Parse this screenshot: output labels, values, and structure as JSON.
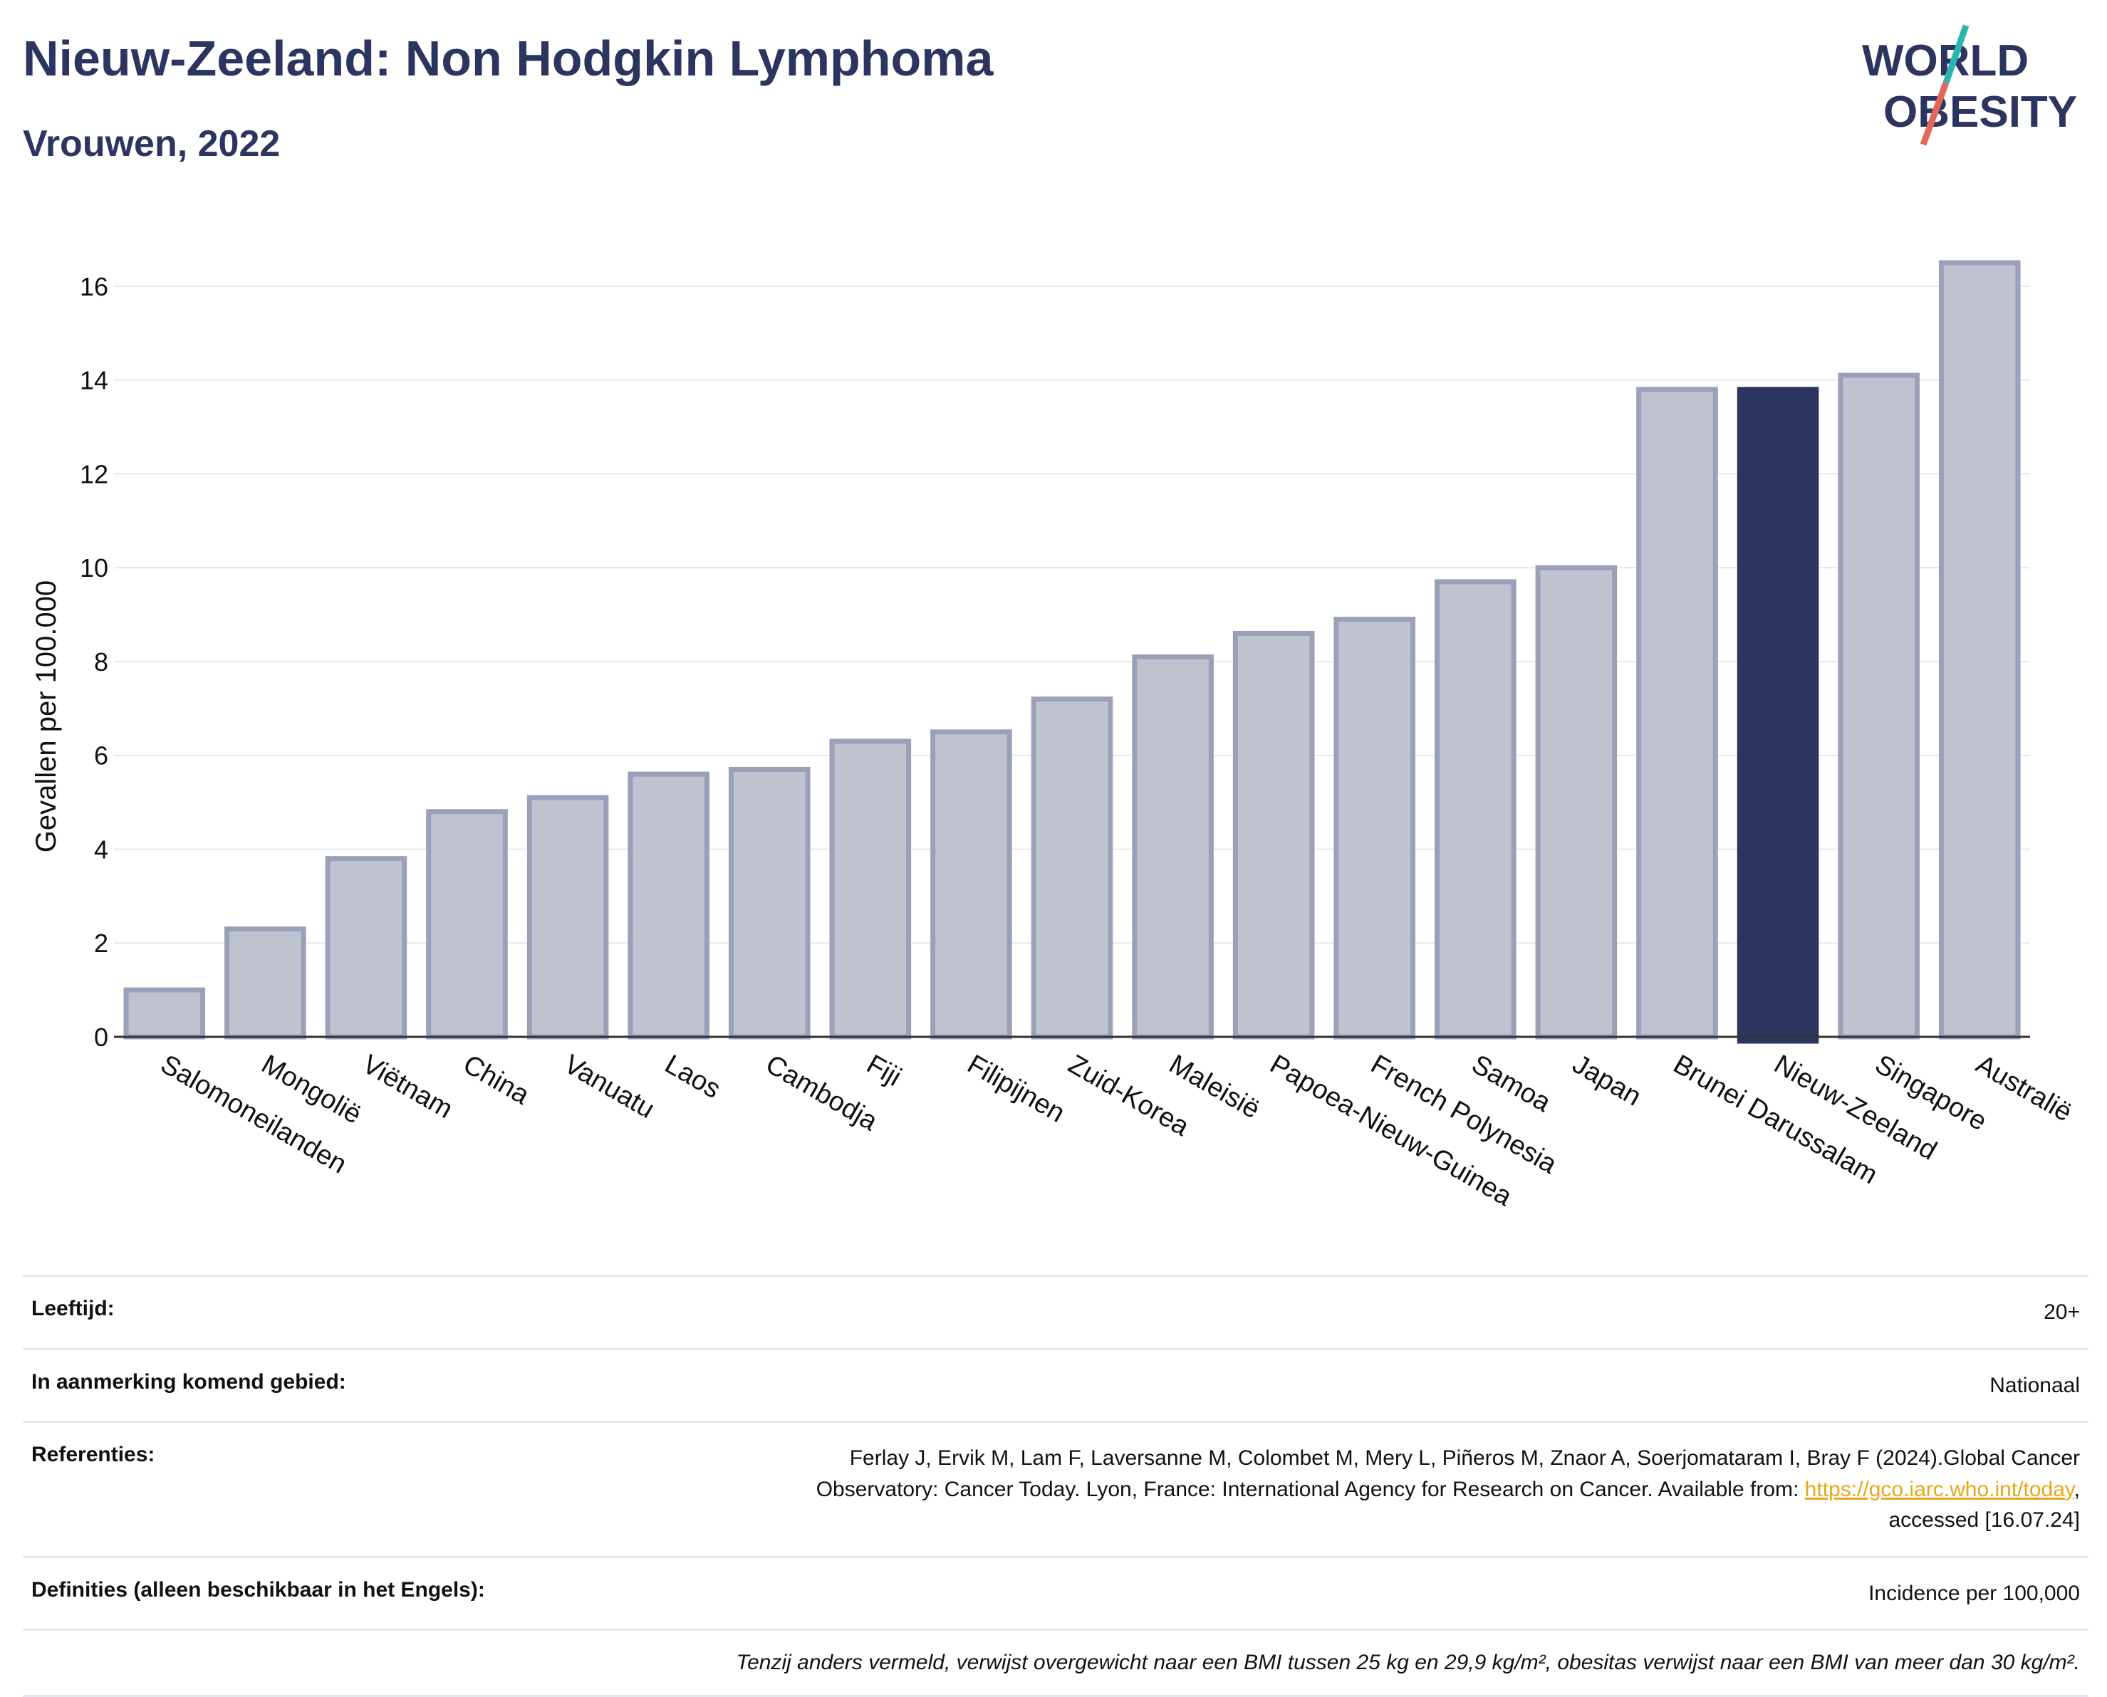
{
  "header": {
    "title": "Nieuw-Zeeland: Non Hodgkin Lymphoma",
    "subtitle": "Vrouwen, 2022"
  },
  "logo": {
    "line1": "WORLD",
    "line2": "OBESITY"
  },
  "colors": {
    "bar": "#bfc3d0",
    "bar_stroke": "#9aa0b8",
    "highlight": "#2b3560",
    "title": "#2b3560",
    "grid": "#e6e8ef",
    "logo_teal": "#2bb5b0",
    "logo_red": "#e2675a"
  },
  "chart_data": {
    "type": "bar",
    "ylabel": "Gevallen per 100.000",
    "ylim": [
      0,
      17
    ],
    "yticks": [
      "0",
      "2",
      "4",
      "6",
      "8",
      "10",
      "12",
      "14",
      "16"
    ],
    "grid": true,
    "highlight": "Nieuw-Zeeland",
    "categories": [
      "Salomoneilanden",
      "Mongolië",
      "Viëtnam",
      "China",
      "Vanuatu",
      "Laos",
      "Cambodja",
      "Fiji",
      "Filipijnen",
      "Zuid-Korea",
      "Maleisië",
      "Papoea-Nieuw-Guinea",
      "French Polynesia",
      "Samoa",
      "Japan",
      "Brunei Darussalam",
      "Nieuw-Zeeland",
      "Singapore",
      "Australië"
    ],
    "values": [
      1.0,
      2.3,
      3.8,
      4.8,
      5.1,
      5.6,
      5.7,
      6.3,
      6.5,
      7.2,
      8.1,
      8.6,
      8.9,
      9.7,
      10.0,
      13.8,
      13.8,
      14.1,
      16.5
    ]
  },
  "meta": {
    "age_label": "Leeftijd:",
    "age_value": "20+",
    "area_label": "In aanmerking komend gebied:",
    "area_value": "Nationaal",
    "ref_label": "Referenties:",
    "ref_text_1": "Ferlay J, Ervik M, Lam F, Laversanne M, Colombet M, Mery L, Piñeros M, Znaor A, Soerjomataram I, Bray F (2024).Global Cancer",
    "ref_text_2": "Observatory: Cancer Today. Lyon, France: International Agency for Research on Cancer. Available from: ",
    "ref_link": "https://gco.iarc.who.int/today",
    "ref_text_3": ",",
    "ref_text_4": "accessed [16.07.24]",
    "def_label": "Definities (alleen beschikbaar in het Engels):",
    "def_value": "Incidence per 100,000",
    "note": "Tenzij anders vermeld, verwijst overgewicht naar een BMI tussen 25 kg en 29,9 kg/m², obesitas verwijst naar een BMI van meer dan 30 kg/m²."
  }
}
